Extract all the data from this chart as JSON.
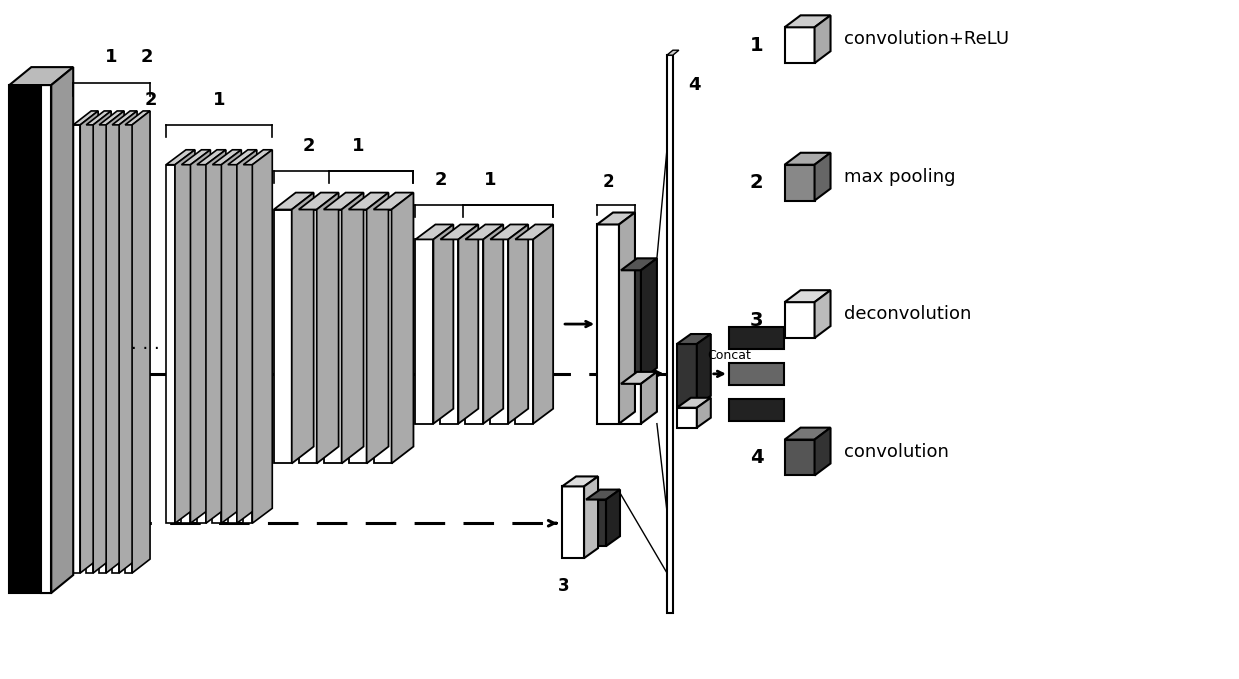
{
  "bg_color": "#ffffff",
  "legend": [
    {
      "num": "1",
      "label": "convolution+ReLU",
      "face": "white",
      "top": "#cccccc",
      "side": "#aaaaaa"
    },
    {
      "num": "2",
      "label": "max pooling",
      "face": "#888888",
      "top": "#aaaaaa",
      "side": "#666666"
    },
    {
      "num": "3",
      "label": "deconvolution",
      "face": "white",
      "top": "#dddddd",
      "side": "#bbbbbb"
    },
    {
      "num": "4",
      "label": "convolution",
      "face": "#555555",
      "top": "#777777",
      "side": "#333333"
    }
  ],
  "concat_label": "Concat"
}
